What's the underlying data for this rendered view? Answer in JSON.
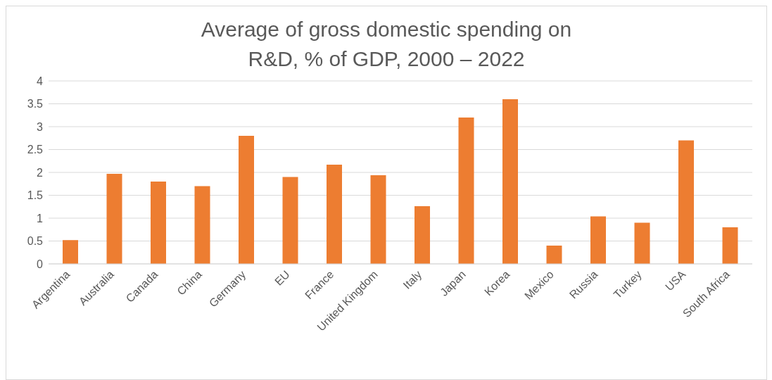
{
  "chart_data": {
    "type": "bar",
    "title": "Average of gross domestic spending on R&D, % of GDP, 2000 – 2022",
    "categories": [
      "Argentina",
      "Australia",
      "Canada",
      "China",
      "Germany",
      "EU",
      "France",
      "United Kingdom",
      "Italy",
      "Japan",
      "Korea",
      "Mexico",
      "Russia",
      "Turkey",
      "USA",
      "South Africa"
    ],
    "values": [
      0.52,
      1.97,
      1.8,
      1.7,
      2.8,
      1.9,
      2.17,
      1.94,
      1.26,
      3.2,
      3.6,
      0.4,
      1.04,
      0.9,
      2.7,
      0.8
    ],
    "color": "#ed7d31",
    "ylim": [
      0,
      4
    ],
    "yticks": [
      0,
      0.5,
      1,
      1.5,
      2,
      2.5,
      3,
      3.5,
      4
    ],
    "grid": "y"
  }
}
